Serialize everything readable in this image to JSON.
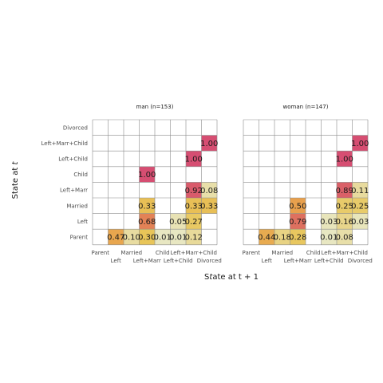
{
  "chart_data": {
    "type": "heatmap",
    "xlabel": "State at t + 1",
    "ylabel": "State at t",
    "x_categories": [
      "Parent",
      "Left",
      "Married",
      "Left+Marr",
      "Child",
      "Left+Child",
      "Left+Marr+Child",
      "Divorced"
    ],
    "y_categories": [
      "Parent",
      "Left",
      "Married",
      "Left+Marr",
      "Child",
      "Left+Child",
      "Left+Marr+Child",
      "Divorced"
    ],
    "x_tick_labels": [
      {
        "line1": "Parent",
        "line2": ""
      },
      {
        "line1": "",
        "line2": "Left"
      },
      {
        "line1": "Married",
        "line2": ""
      },
      {
        "line1": "",
        "line2": "Left+Marr"
      },
      {
        "line1": "Child",
        "line2": ""
      },
      {
        "line1": "",
        "line2": "Left+Child"
      },
      {
        "line1": "Left+Marr+Child",
        "line2": ""
      },
      {
        "line1": "",
        "line2": "Divorced"
      }
    ],
    "y_tick_labels": [
      "Parent",
      "Left",
      "Married",
      "Left+Marr",
      "Child",
      "Left+Child",
      "Left+Marr+Child",
      "Divorced"
    ],
    "color_scale": {
      "low": "#e8e8c6",
      "mid": "#e8c558",
      "high_mid": "#e8974a",
      "high": "#d64e72"
    },
    "panels": [
      {
        "title": "man (n=153)",
        "cells": [
          {
            "from": "Parent",
            "to": "Left",
            "value": 0.47,
            "label": "0.47"
          },
          {
            "from": "Parent",
            "to": "Married",
            "value": 0.1,
            "label": "0.10"
          },
          {
            "from": "Parent",
            "to": "Left+Marr",
            "value": 0.3,
            "label": "0.30"
          },
          {
            "from": "Parent",
            "to": "Child",
            "value": 0.01,
            "label": "0.01"
          },
          {
            "from": "Parent",
            "to": "Left+Child",
            "value": 0.01,
            "label": "0.01"
          },
          {
            "from": "Parent",
            "to": "Left+Marr+Child",
            "value": 0.12,
            "label": "0.12"
          },
          {
            "from": "Left",
            "to": "Left+Marr",
            "value": 0.68,
            "label": "0.68"
          },
          {
            "from": "Left",
            "to": "Left+Child",
            "value": 0.05,
            "label": "0.05"
          },
          {
            "from": "Left",
            "to": "Left+Marr+Child",
            "value": 0.27,
            "label": "0.27"
          },
          {
            "from": "Married",
            "to": "Left+Marr",
            "value": 0.33,
            "label": "0.33"
          },
          {
            "from": "Married",
            "to": "Left+Marr+Child",
            "value": 0.33,
            "label": "0.33"
          },
          {
            "from": "Married",
            "to": "Divorced",
            "value": 0.33,
            "label": "0.33"
          },
          {
            "from": "Left+Marr",
            "to": "Left+Marr+Child",
            "value": 0.92,
            "label": "0.92"
          },
          {
            "from": "Left+Marr",
            "to": "Divorced",
            "value": 0.08,
            "label": "0.08"
          },
          {
            "from": "Child",
            "to": "Left+Marr",
            "value": 1.0,
            "label": "1.00"
          },
          {
            "from": "Left+Child",
            "to": "Left+Marr+Child",
            "value": 1.0,
            "label": "1.00"
          },
          {
            "from": "Left+Marr+Child",
            "to": "Divorced",
            "value": 1.0,
            "label": "1.00"
          }
        ]
      },
      {
        "title": "woman (n=147)",
        "cells": [
          {
            "from": "Parent",
            "to": "Left",
            "value": 0.44,
            "label": "0.44"
          },
          {
            "from": "Parent",
            "to": "Married",
            "value": 0.18,
            "label": "0.18"
          },
          {
            "from": "Parent",
            "to": "Left+Marr",
            "value": 0.28,
            "label": "0.28"
          },
          {
            "from": "Parent",
            "to": "Left+Child",
            "value": 0.01,
            "label": "0.01"
          },
          {
            "from": "Parent",
            "to": "Left+Marr+Child",
            "value": 0.08,
            "label": "0.08"
          },
          {
            "from": "Left",
            "to": "Left+Marr",
            "value": 0.79,
            "label": "0.79"
          },
          {
            "from": "Left",
            "to": "Left+Child",
            "value": 0.03,
            "label": "0.03"
          },
          {
            "from": "Left",
            "to": "Left+Marr+Child",
            "value": 0.16,
            "label": "0.16"
          },
          {
            "from": "Left",
            "to": "Divorced",
            "value": 0.03,
            "label": "0.03"
          },
          {
            "from": "Married",
            "to": "Left+Marr",
            "value": 0.5,
            "label": "0.50"
          },
          {
            "from": "Married",
            "to": "Left+Marr+Child",
            "value": 0.25,
            "label": "0.25"
          },
          {
            "from": "Married",
            "to": "Divorced",
            "value": 0.25,
            "label": "0.25"
          },
          {
            "from": "Left+Marr",
            "to": "Left+Marr+Child",
            "value": 0.89,
            "label": "0.89"
          },
          {
            "from": "Left+Marr",
            "to": "Divorced",
            "value": 0.11,
            "label": "0.11"
          },
          {
            "from": "Left+Child",
            "to": "Left+Marr+Child",
            "value": 1.0,
            "label": "1.00"
          },
          {
            "from": "Left+Marr+Child",
            "to": "Divorced",
            "value": 1.0,
            "label": "1.00"
          }
        ]
      }
    ],
    "grid": true,
    "legend": "none"
  }
}
